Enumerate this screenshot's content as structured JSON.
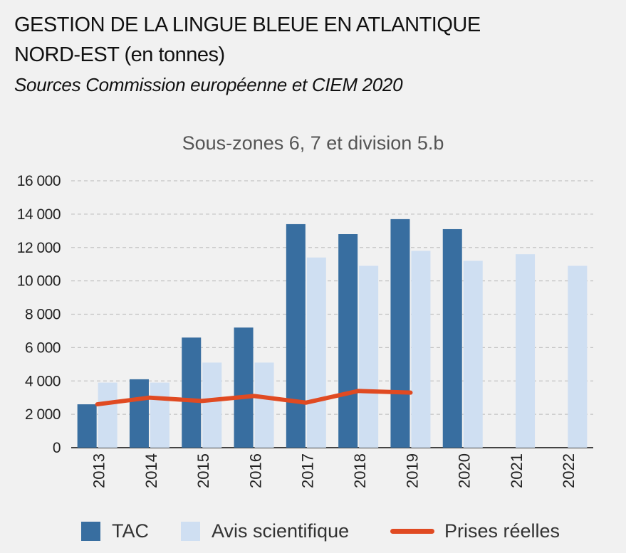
{
  "header": {
    "title_line1": "GESTION DE LA LINGUE BLEUE EN ATLANTIQUE",
    "title_line2": "NORD-EST (en tonnes)",
    "subtitle": "Sources Commission européenne et CIEM 2020"
  },
  "colors": {
    "tac": "#386ea0",
    "avis": "#cfdff2",
    "prises": "#e04a22",
    "grid": "#c4c4c4"
  },
  "chart_data": {
    "type": "bar",
    "title": "Sous-zones 6, 7 et division 5.b",
    "xlabel": "",
    "ylabel": "",
    "categories": [
      "2013",
      "2014",
      "2015",
      "2016",
      "2017",
      "2018",
      "2019",
      "2020",
      "2021",
      "2022"
    ],
    "ylim": [
      0,
      16000
    ],
    "yticks": [
      0,
      2000,
      4000,
      6000,
      8000,
      10000,
      12000,
      14000,
      16000
    ],
    "ytick_labels": [
      "0",
      "2 000",
      "4 000",
      "6 000",
      "8 000",
      "10 000",
      "12 000",
      "14 000",
      "16 000"
    ],
    "grid": true,
    "legend_position": "bottom",
    "series": [
      {
        "name": "TAC",
        "type": "bar",
        "values": [
          2600,
          4100,
          6600,
          7200,
          13400,
          12800,
          13700,
          13100,
          null,
          null
        ]
      },
      {
        "name": "Avis scientifique",
        "type": "bar",
        "values": [
          3900,
          3900,
          5100,
          5100,
          11400,
          10900,
          11800,
          11200,
          11600,
          10900
        ]
      },
      {
        "name": "Prises réelles",
        "type": "line",
        "values": [
          2600,
          3000,
          2800,
          3100,
          2700,
          3400,
          3300,
          null,
          null,
          null
        ]
      }
    ]
  }
}
